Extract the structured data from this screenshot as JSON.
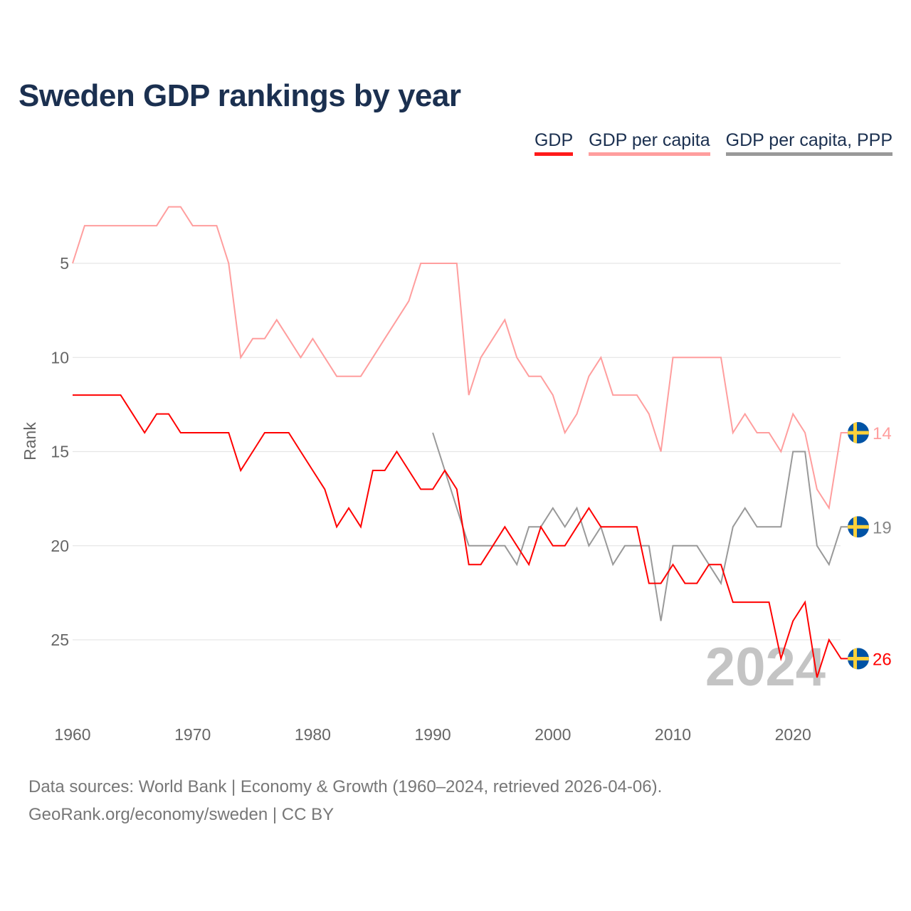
{
  "title": "Sweden GDP rankings by year",
  "footer": {
    "line1": "Data sources: World Bank | Economy & Growth (1960–2024, retrieved 2026-04-06).",
    "line2": "GeoRank.org/economy/sweden | CC BY"
  },
  "current_year": "2024",
  "flag_icon": "sweden-flag-icon",
  "chart_data": {
    "type": "line",
    "title": "Sweden GDP rankings by year",
    "xlabel": "",
    "ylabel": "Rank",
    "xlim": [
      1960,
      2024
    ],
    "ylim": [
      1.5,
      28
    ],
    "y_inverted": true,
    "x_ticks": [
      "1960",
      "1970",
      "1980",
      "1990",
      "2000",
      "2010",
      "2020"
    ],
    "y_ticks": [
      "5",
      "10",
      "15",
      "20",
      "25"
    ],
    "grid": true,
    "legend_position": "top-right",
    "series": [
      {
        "name": "GDP",
        "color": "#ff0000",
        "start": 1960,
        "end_label": "26",
        "values": [
          12,
          12,
          12,
          12,
          12,
          13,
          14,
          13,
          13,
          14,
          14,
          14,
          14,
          14,
          16,
          15,
          14,
          14,
          14,
          15,
          16,
          17,
          19,
          18,
          19,
          16,
          16,
          15,
          16,
          17,
          17,
          16,
          17,
          21,
          21,
          20,
          19,
          20,
          21,
          19,
          20,
          20,
          19,
          18,
          19,
          19,
          19,
          19,
          22,
          22,
          21,
          22,
          22,
          21,
          21,
          23,
          23,
          23,
          23,
          26,
          24,
          23,
          27,
          25,
          26
        ]
      },
      {
        "name": "GDP per capita",
        "color": "#ff9e9e",
        "start": 1960,
        "end_label": "14",
        "values": [
          5,
          3,
          3,
          3,
          3,
          3,
          3,
          3,
          2,
          2,
          3,
          3,
          3,
          5,
          10,
          9,
          9,
          8,
          9,
          10,
          9,
          10,
          11,
          11,
          11,
          10,
          9,
          8,
          7,
          5,
          5,
          5,
          5,
          12,
          10,
          9,
          8,
          10,
          11,
          11,
          12,
          14,
          13,
          11,
          10,
          12,
          12,
          12,
          13,
          15,
          10,
          10,
          10,
          10,
          10,
          14,
          13,
          14,
          14,
          15,
          13,
          14,
          17,
          18,
          14
        ]
      },
      {
        "name": "GDP per capita, PPP",
        "color": "#999999",
        "start": 1990,
        "end_label": "19",
        "values": [
          14,
          16,
          18,
          20,
          20,
          20,
          20,
          21,
          19,
          19,
          18,
          19,
          18,
          20,
          19,
          21,
          20,
          20,
          20,
          24,
          20,
          20,
          20,
          21,
          22,
          19,
          18,
          19,
          19,
          19,
          15,
          15,
          20,
          21,
          19
        ]
      }
    ]
  }
}
